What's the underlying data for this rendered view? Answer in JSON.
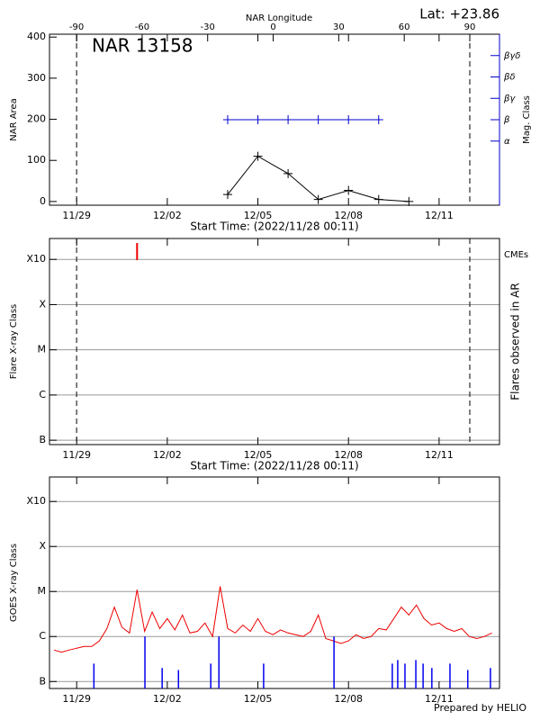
{
  "header": {
    "lat": "Lat: +23.86",
    "footer": "Prepared by HELIO"
  },
  "chart_data": [
    {
      "type": "line",
      "title": "NAR 13158",
      "x_label": "Start Time: (2022/11/28 00:11)",
      "x2_label": "NAR Longitude",
      "y_label": "NAR Area",
      "y2_label": "Mag. Class",
      "xlim": [
        0.1,
        15.0
      ],
      "xticks": [
        {
          "value": 1,
          "label": "11/29"
        },
        {
          "value": 4,
          "label": "12/02"
        },
        {
          "value": 7,
          "label": "12/05"
        },
        {
          "value": 10,
          "label": "12/08"
        },
        {
          "value": 13,
          "label": "12/11"
        }
      ],
      "x2lim": [
        -102.4,
        103.6
      ],
      "x2ticks": [
        -90,
        -60,
        -30,
        0,
        30,
        60,
        90
      ],
      "ylim": [
        -9,
        407
      ],
      "yticks": [
        0,
        100,
        200,
        300,
        400
      ],
      "y2lim": [
        -2,
        6
      ],
      "y2ticks": [
        {
          "value": 1,
          "label": "α"
        },
        {
          "value": 2,
          "label": "β"
        },
        {
          "value": 3,
          "label": "βγ"
        },
        {
          "value": 4,
          "label": "βδ"
        },
        {
          "value": 5,
          "label": "βγδ"
        }
      ],
      "y2color": "#0000cc",
      "series": [
        {
          "color": "#000000",
          "marker": "+",
          "x": [
            6,
            7,
            8,
            9,
            10,
            11,
            12
          ],
          "values": [
            17,
            110,
            68,
            5,
            27,
            5,
            0
          ]
        },
        {
          "color": "#0000cc",
          "marker": "+",
          "axis": "y2",
          "x": [
            6,
            7,
            8,
            9,
            10,
            11
          ],
          "values": [
            2,
            2,
            2,
            2,
            2,
            2
          ]
        }
      ]
    },
    {
      "type": "line",
      "x_label": "Start Time: (2022/11/28 00:11)",
      "y_label": "Flare X-ray Class",
      "y2_label": "Flares observed in AR",
      "xlim": [
        0.1,
        15.0
      ],
      "xticks": [
        {
          "value": 1,
          "label": "11/29"
        },
        {
          "value": 4,
          "label": "12/02"
        },
        {
          "value": 7,
          "label": "12/05"
        },
        {
          "value": 10,
          "label": "12/08"
        },
        {
          "value": 13,
          "label": "12/11"
        }
      ],
      "log_y": true,
      "grid": true,
      "ylim": [
        8e-08,
        0.0029
      ],
      "yticks": [
        {
          "value": 1e-07,
          "label": "B"
        },
        {
          "value": 1e-06,
          "label": "C"
        },
        {
          "value": 1e-05,
          "label": "M"
        },
        {
          "value": 0.0001,
          "label": "X"
        },
        {
          "value": 0.001,
          "label": "X10"
        }
      ],
      "series": [
        {
          "name": "CMEs",
          "color": "#ee0000",
          "draw": "event",
          "x": [
            3.0
          ]
        }
      ]
    },
    {
      "type": "line",
      "y_label": "GOES X-ray Class",
      "xlim": [
        0.1,
        15.0
      ],
      "xticks": [
        {
          "value": 1,
          "label": "11/29"
        },
        {
          "value": 4,
          "label": "12/02"
        },
        {
          "value": 7,
          "label": "12/05"
        },
        {
          "value": 10,
          "label": "12/08"
        },
        {
          "value": 13,
          "label": "12/11"
        }
      ],
      "log_y": true,
      "grid": true,
      "ylim": [
        7e-08,
        0.0035
      ],
      "yticks": [
        {
          "value": 1e-07,
          "label": "B"
        },
        {
          "value": 1e-06,
          "label": "C"
        },
        {
          "value": 1e-05,
          "label": "M"
        },
        {
          "value": 0.0001,
          "label": "X"
        },
        {
          "value": 0.001,
          "label": "X10"
        }
      ],
      "series": [
        {
          "color": "#ee0000",
          "x": [
            0.25,
            0.5,
            0.75,
            1.0,
            1.25,
            1.5,
            1.75,
            2.0,
            2.25,
            2.5,
            2.75,
            3.0,
            3.25,
            3.5,
            3.75,
            4.0,
            4.25,
            4.5,
            4.75,
            5.0,
            5.25,
            5.5,
            5.75,
            6.0,
            6.25,
            6.5,
            6.75,
            7.0,
            7.25,
            7.5,
            7.75,
            8.0,
            8.25,
            8.5,
            8.75,
            9.0,
            9.25,
            9.5,
            9.75,
            10.0,
            10.25,
            10.5,
            10.75,
            11.0,
            11.25,
            11.5,
            11.75,
            12.0,
            12.25,
            12.5,
            12.75,
            13.0,
            13.25,
            13.5,
            13.75,
            14.0,
            14.25,
            14.5,
            14.75
          ],
          "values": [
            5e-07,
            4.5e-07,
            5e-07,
            5.5e-07,
            6e-07,
            6e-07,
            8e-07,
            1.5e-06,
            4.5e-06,
            1.6e-06,
            1.2e-06,
            1.1e-05,
            1.3e-06,
            3.5e-06,
            1.5e-06,
            2.5e-06,
            1.4e-06,
            3e-06,
            1.2e-06,
            1.3e-06,
            2e-06,
            1e-06,
            1.3e-05,
            1.5e-06,
            1.2e-06,
            1.8e-06,
            1.3e-06,
            2.5e-06,
            1.3e-06,
            1.1e-06,
            1.4e-06,
            1.2e-06,
            1.1e-06,
            1e-06,
            1.3e-06,
            3e-06,
            9e-07,
            8e-07,
            7e-07,
            8e-07,
            1.1e-06,
            9e-07,
            1e-06,
            1.5e-06,
            1.4e-06,
            2.5e-06,
            4.5e-06,
            3e-06,
            5e-06,
            2.5e-06,
            1.8e-06,
            2e-06,
            1.5e-06,
            1.3e-06,
            1.5e-06,
            1e-06,
            9e-07,
            1e-06,
            1.2e-06
          ]
        },
        {
          "color": "#0000ee",
          "draw": "stem",
          "x": [
            1.57,
            3.26,
            3.83,
            4.37,
            5.44,
            5.71,
            7.19,
            9.52,
            11.45,
            11.63,
            11.87,
            12.23,
            12.47,
            12.76,
            13.36,
            13.95,
            14.7
          ],
          "values": [
            2.5e-07,
            1e-06,
            2e-07,
            1.8e-07,
            2.5e-07,
            1e-06,
            2.5e-07,
            1e-06,
            2.5e-07,
            3e-07,
            2.5e-07,
            3e-07,
            2.5e-07,
            2e-07,
            2.5e-07,
            1.8e-07,
            2e-07
          ]
        }
      ]
    }
  ]
}
